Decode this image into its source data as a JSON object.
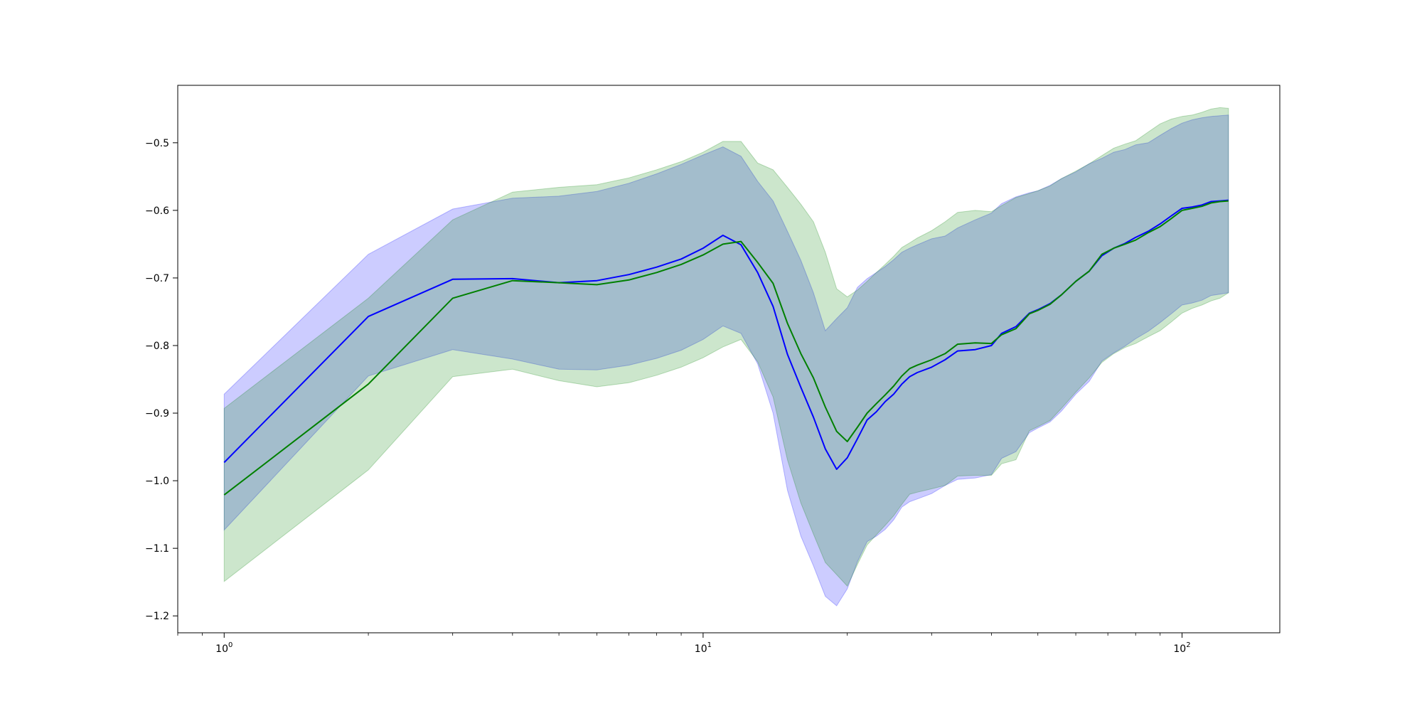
{
  "chart_data": {
    "type": "line",
    "title": "",
    "xlabel": "",
    "ylabel": "",
    "xscale": "log",
    "xlim": [
      0.8,
      160
    ],
    "ylim": [
      -1.225,
      -0.415
    ],
    "grid": false,
    "x_ticks": [
      {
        "value": 1,
        "base": "10",
        "exp": "0"
      },
      {
        "value": 10,
        "base": "10",
        "exp": "1"
      },
      {
        "value": 100,
        "base": "10",
        "exp": "2"
      }
    ],
    "y_ticks": [
      {
        "value": -0.5,
        "label": "−0.5"
      },
      {
        "value": -0.6,
        "label": "−0.6"
      },
      {
        "value": -0.7,
        "label": "−0.7"
      },
      {
        "value": -0.8,
        "label": "−0.8"
      },
      {
        "value": -0.9,
        "label": "−0.9"
      },
      {
        "value": -1.0,
        "label": "−1.0"
      },
      {
        "value": -1.1,
        "label": "−1.1"
      },
      {
        "value": -1.2,
        "label": "−1.2"
      }
    ],
    "series": [
      {
        "color": "#0000ff",
        "band_color": "#0000ff",
        "band_opacity": 0.2,
        "x": [
          1,
          2,
          3,
          4,
          5,
          6,
          7,
          8,
          9,
          10,
          11,
          12,
          13,
          14,
          15,
          16,
          17,
          18,
          19,
          20,
          21,
          22,
          23,
          24,
          25,
          26,
          27,
          28,
          30,
          32,
          34,
          37,
          40,
          42,
          45,
          48,
          50,
          53,
          56,
          60,
          64,
          68,
          72,
          76,
          80,
          85,
          90,
          95,
          100,
          105,
          110,
          115,
          120,
          125
        ],
        "y": [
          -0.973,
          -0.757,
          -0.702,
          -0.701,
          -0.707,
          -0.704,
          -0.695,
          -0.684,
          -0.672,
          -0.656,
          -0.637,
          -0.651,
          -0.692,
          -0.742,
          -0.813,
          -0.862,
          -0.906,
          -0.953,
          -0.983,
          -0.966,
          -0.938,
          -0.91,
          -0.898,
          -0.883,
          -0.872,
          -0.857,
          -0.846,
          -0.84,
          -0.832,
          -0.821,
          -0.808,
          -0.806,
          -0.8,
          -0.782,
          -0.772,
          -0.752,
          -0.747,
          -0.738,
          -0.725,
          -0.705,
          -0.69,
          -0.667,
          -0.656,
          -0.649,
          -0.64,
          -0.631,
          -0.62,
          -0.608,
          -0.597,
          -0.595,
          -0.592,
          -0.587,
          -0.586,
          -0.585
        ],
        "upper": [
          -0.872,
          -0.665,
          -0.598,
          -0.582,
          -0.579,
          -0.572,
          -0.56,
          -0.546,
          -0.532,
          -0.518,
          -0.506,
          -0.52,
          -0.557,
          -0.586,
          -0.631,
          -0.674,
          -0.722,
          -0.778,
          -0.76,
          -0.744,
          -0.714,
          -0.701,
          -0.692,
          -0.683,
          -0.673,
          -0.662,
          -0.656,
          -0.651,
          -0.642,
          -0.638,
          -0.626,
          -0.614,
          -0.604,
          -0.59,
          -0.58,
          -0.574,
          -0.571,
          -0.563,
          -0.553,
          -0.543,
          -0.531,
          -0.523,
          -0.514,
          -0.51,
          -0.503,
          -0.5,
          -0.489,
          -0.479,
          -0.471,
          -0.466,
          -0.463,
          -0.461,
          -0.46,
          -0.459
        ],
        "lower": [
          -1.073,
          -0.845,
          -0.806,
          -0.82,
          -0.835,
          -0.836,
          -0.829,
          -0.819,
          -0.807,
          -0.791,
          -0.771,
          -0.782,
          -0.827,
          -0.9,
          -1.014,
          -1.082,
          -1.126,
          -1.171,
          -1.185,
          -1.16,
          -1.12,
          -1.09,
          -1.082,
          -1.072,
          -1.058,
          -1.039,
          -1.031,
          -1.027,
          -1.019,
          -1.007,
          -0.998,
          -0.996,
          -0.991,
          -0.967,
          -0.957,
          -0.929,
          -0.922,
          -0.913,
          -0.897,
          -0.872,
          -0.853,
          -0.823,
          -0.811,
          -0.801,
          -0.79,
          -0.779,
          -0.766,
          -0.753,
          -0.74,
          -0.737,
          -0.733,
          -0.726,
          -0.724,
          -0.722
        ]
      },
      {
        "color": "#008000",
        "band_color": "#008000",
        "band_opacity": 0.2,
        "x": [
          1,
          2,
          3,
          4,
          5,
          6,
          7,
          8,
          9,
          10,
          11,
          12,
          13,
          14,
          15,
          16,
          17,
          18,
          19,
          20,
          21,
          22,
          23,
          24,
          25,
          26,
          27,
          28,
          30,
          32,
          34,
          37,
          40,
          42,
          45,
          48,
          50,
          53,
          56,
          60,
          64,
          68,
          72,
          76,
          80,
          85,
          90,
          95,
          100,
          105,
          110,
          115,
          120,
          125
        ],
        "y": [
          -1.021,
          -0.857,
          -0.73,
          -0.704,
          -0.707,
          -0.71,
          -0.703,
          -0.692,
          -0.68,
          -0.666,
          -0.65,
          -0.646,
          -0.677,
          -0.708,
          -0.767,
          -0.812,
          -0.848,
          -0.891,
          -0.927,
          -0.942,
          -0.921,
          -0.9,
          -0.886,
          -0.873,
          -0.86,
          -0.845,
          -0.834,
          -0.829,
          -0.821,
          -0.812,
          -0.798,
          -0.796,
          -0.797,
          -0.784,
          -0.775,
          -0.753,
          -0.748,
          -0.739,
          -0.725,
          -0.705,
          -0.69,
          -0.665,
          -0.656,
          -0.65,
          -0.644,
          -0.633,
          -0.624,
          -0.612,
          -0.6,
          -0.597,
          -0.594,
          -0.589,
          -0.587,
          -0.586
        ],
        "upper": [
          -0.893,
          -0.73,
          -0.614,
          -0.573,
          -0.566,
          -0.562,
          -0.552,
          -0.54,
          -0.528,
          -0.514,
          -0.498,
          -0.498,
          -0.53,
          -0.54,
          -0.566,
          -0.591,
          -0.617,
          -0.662,
          -0.716,
          -0.728,
          -0.718,
          -0.705,
          -0.692,
          -0.68,
          -0.668,
          -0.655,
          -0.648,
          -0.641,
          -0.63,
          -0.617,
          -0.603,
          -0.6,
          -0.602,
          -0.593,
          -0.581,
          -0.575,
          -0.571,
          -0.564,
          -0.553,
          -0.542,
          -0.531,
          -0.519,
          -0.508,
          -0.502,
          -0.497,
          -0.484,
          -0.472,
          -0.465,
          -0.461,
          -0.459,
          -0.455,
          -0.45,
          -0.448,
          -0.449
        ],
        "lower": [
          -1.149,
          -0.984,
          -0.846,
          -0.835,
          -0.852,
          -0.861,
          -0.855,
          -0.844,
          -0.832,
          -0.818,
          -0.802,
          -0.791,
          -0.824,
          -0.876,
          -0.969,
          -1.033,
          -1.079,
          -1.121,
          -1.139,
          -1.156,
          -1.124,
          -1.095,
          -1.08,
          -1.066,
          -1.052,
          -1.035,
          -1.02,
          -1.017,
          -1.012,
          -1.007,
          -0.993,
          -0.992,
          -0.992,
          -0.975,
          -0.969,
          -0.926,
          -0.92,
          -0.911,
          -0.893,
          -0.869,
          -0.848,
          -0.825,
          -0.812,
          -0.803,
          -0.797,
          -0.787,
          -0.778,
          -0.765,
          -0.752,
          -0.745,
          -0.74,
          -0.734,
          -0.73,
          -0.722
        ]
      }
    ]
  }
}
